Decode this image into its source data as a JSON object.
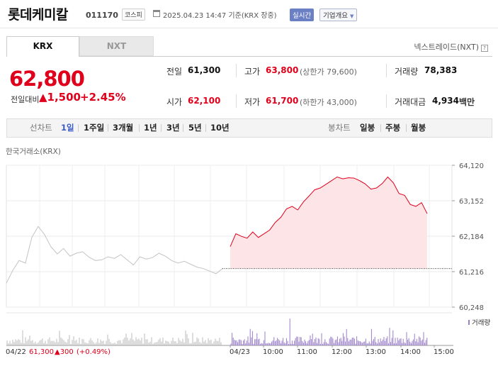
{
  "header": {
    "stock_name": "롯데케미칼",
    "stock_code": "011170",
    "market": "코스피",
    "datetime": "2025.04.23 14:47  기준(KRX 장중)",
    "realtime": "실시간",
    "company_overview": "기업개요",
    "company_overview_chev": "▼"
  },
  "tabs": {
    "krx": "KRX",
    "nxt": "NXT",
    "nextrade_link": "넥스트레이드(NXT)",
    "nextrade_help": "?"
  },
  "quote": {
    "price": "62,800",
    "change_label": "전일대비",
    "change_value": "▲1,500",
    "change_pct": "+2.45%",
    "prev_close_label": "전일",
    "prev_close": "61,300",
    "high_label": "고가",
    "high": "63,800",
    "upper_limit": "(상한가 79,600)",
    "volume_label": "거래량",
    "volume": "78,383",
    "open_label": "시가",
    "open": "62,100",
    "low_label": "저가",
    "low": "61,700",
    "lower_limit": "(하한가 43,000)",
    "amount_label": "거래대금",
    "amount": "4,934",
    "amount_unit": "백만"
  },
  "period_bar": {
    "line_label": "선차트",
    "line_items": [
      "1일",
      "1주일",
      "3개월",
      "1년",
      "3년",
      "5년",
      "10년"
    ],
    "active_index": 0,
    "candle_label": "봉차트",
    "candle_items": [
      "일봉",
      "주봉",
      "월봉"
    ]
  },
  "source_label": "한국거래소(KRX)",
  "colors": {
    "up": "#e0001b",
    "accent": "#3b5bc4",
    "fill": "#fde4e6",
    "gray_line": "#c4c4c4",
    "volume_purple": "#9b7fc9",
    "volume_gray": "#bbbbbb"
  },
  "chart_data": {
    "type": "line",
    "y_ticks": [
      "64,120",
      "63,152",
      "62,184",
      "61,216",
      "60,248"
    ],
    "y_tick_values": [
      64120,
      63152,
      62184,
      61216,
      60248
    ],
    "ylim": [
      60248,
      64120
    ],
    "x_labels": [
      "04/23",
      "10:00",
      "11:00",
      "12:00",
      "13:00",
      "14:00",
      "15:00"
    ],
    "reference_value": 61300,
    "series": [
      {
        "x_labels": [
          "04/22"
        ],
        "values": [
          60900,
          61250,
          61520,
          61450,
          62150,
          62450,
          62230,
          61900,
          61700,
          61850,
          61640,
          61720,
          61760,
          61610,
          61520,
          61540,
          61620,
          61580,
          61680,
          61540,
          61400,
          61620,
          61560,
          61600,
          61720,
          61640,
          61520,
          61450,
          61500,
          61420,
          61340,
          61300,
          61230,
          61160,
          61300
        ]
      },
      {
        "x_labels": [
          "04/23"
        ],
        "values": [
          61900,
          62250,
          62180,
          62130,
          62300,
          62150,
          62250,
          62350,
          62560,
          62700,
          62930,
          63000,
          62900,
          63120,
          63280,
          63450,
          63500,
          63600,
          63700,
          63800,
          63750,
          63780,
          63770,
          63700,
          63610,
          63470,
          63500,
          63620,
          63800,
          63640,
          63350,
          63300,
          63050,
          63000,
          63100,
          62800
        ]
      }
    ],
    "volume_label": "거래량",
    "footer_prev": {
      "date": "04/22",
      "price": "61,300",
      "change": "▲300",
      "pct": "(+0.49%)"
    }
  }
}
